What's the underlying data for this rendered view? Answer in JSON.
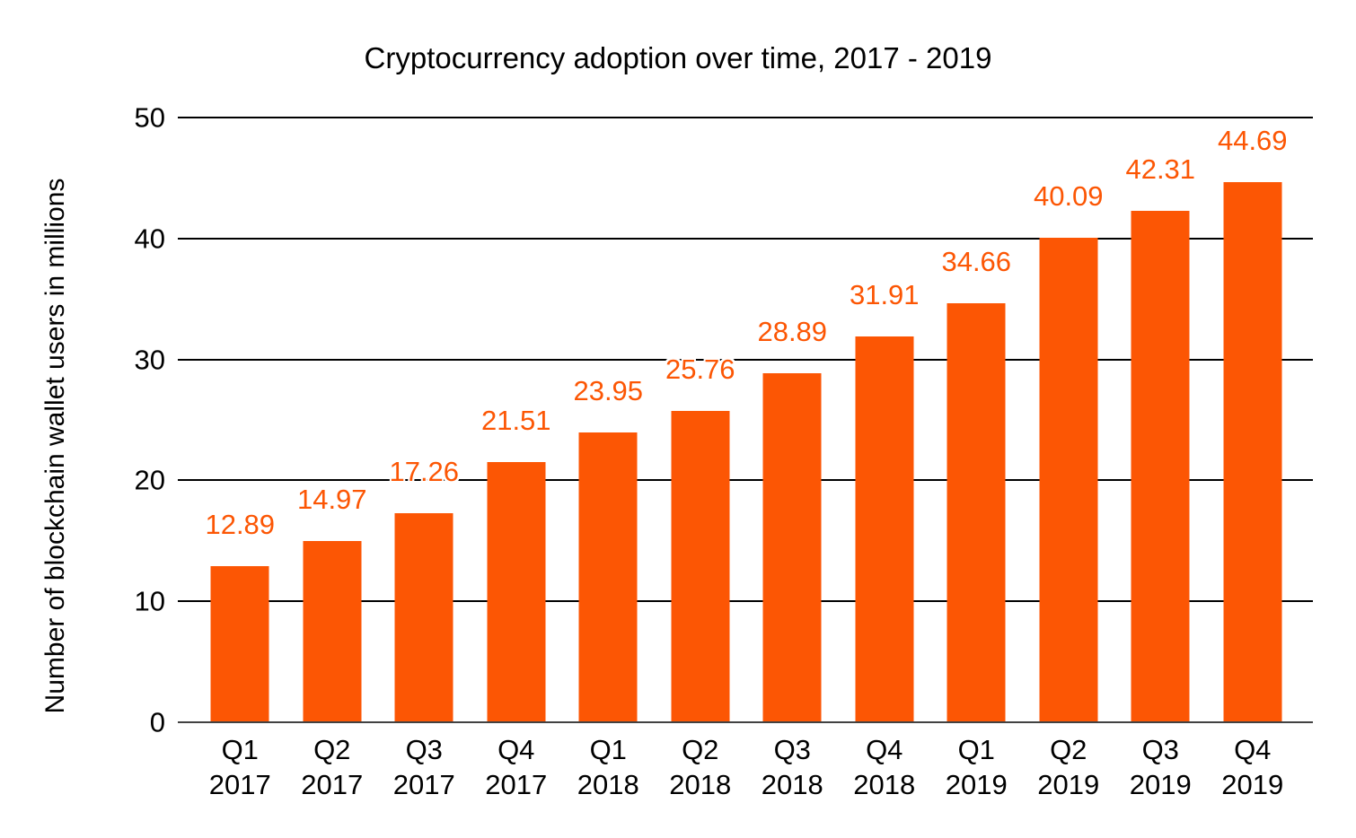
{
  "page": {
    "background": "#ffffff"
  },
  "chart_data": {
    "type": "bar",
    "title": "Cryptocurrency adoption over time, 2017 - 2019",
    "ylabel": "Number of blockchain wallet users in millions",
    "xlabel": "",
    "categories": [
      "Q1 2017",
      "Q2 2017",
      "Q3 2017",
      "Q4 2017",
      "Q1 2018",
      "Q2 2018",
      "Q3 2018",
      "Q4 2018",
      "Q1 2019",
      "Q2 2019",
      "Q3 2019",
      "Q4 2019"
    ],
    "values": [
      12.89,
      14.97,
      17.26,
      21.51,
      23.95,
      25.76,
      28.89,
      31.91,
      34.66,
      40.09,
      42.31,
      44.69
    ],
    "data_labels": [
      "12.89",
      "14.97",
      "17.26",
      "21.51",
      "23.95",
      "25.76",
      "28.89",
      "31.91",
      "34.66",
      "40.09",
      "42.31",
      "44.69"
    ],
    "ylim": [
      0,
      50
    ],
    "yticks": [
      0,
      10,
      20,
      30,
      40,
      50
    ],
    "grid": true,
    "legend": "none",
    "colors": {
      "bar": "#FC5604",
      "data_label": "#FC5604",
      "gridline": "#000000",
      "axis_line": "#424242",
      "text": "#000000"
    }
  }
}
